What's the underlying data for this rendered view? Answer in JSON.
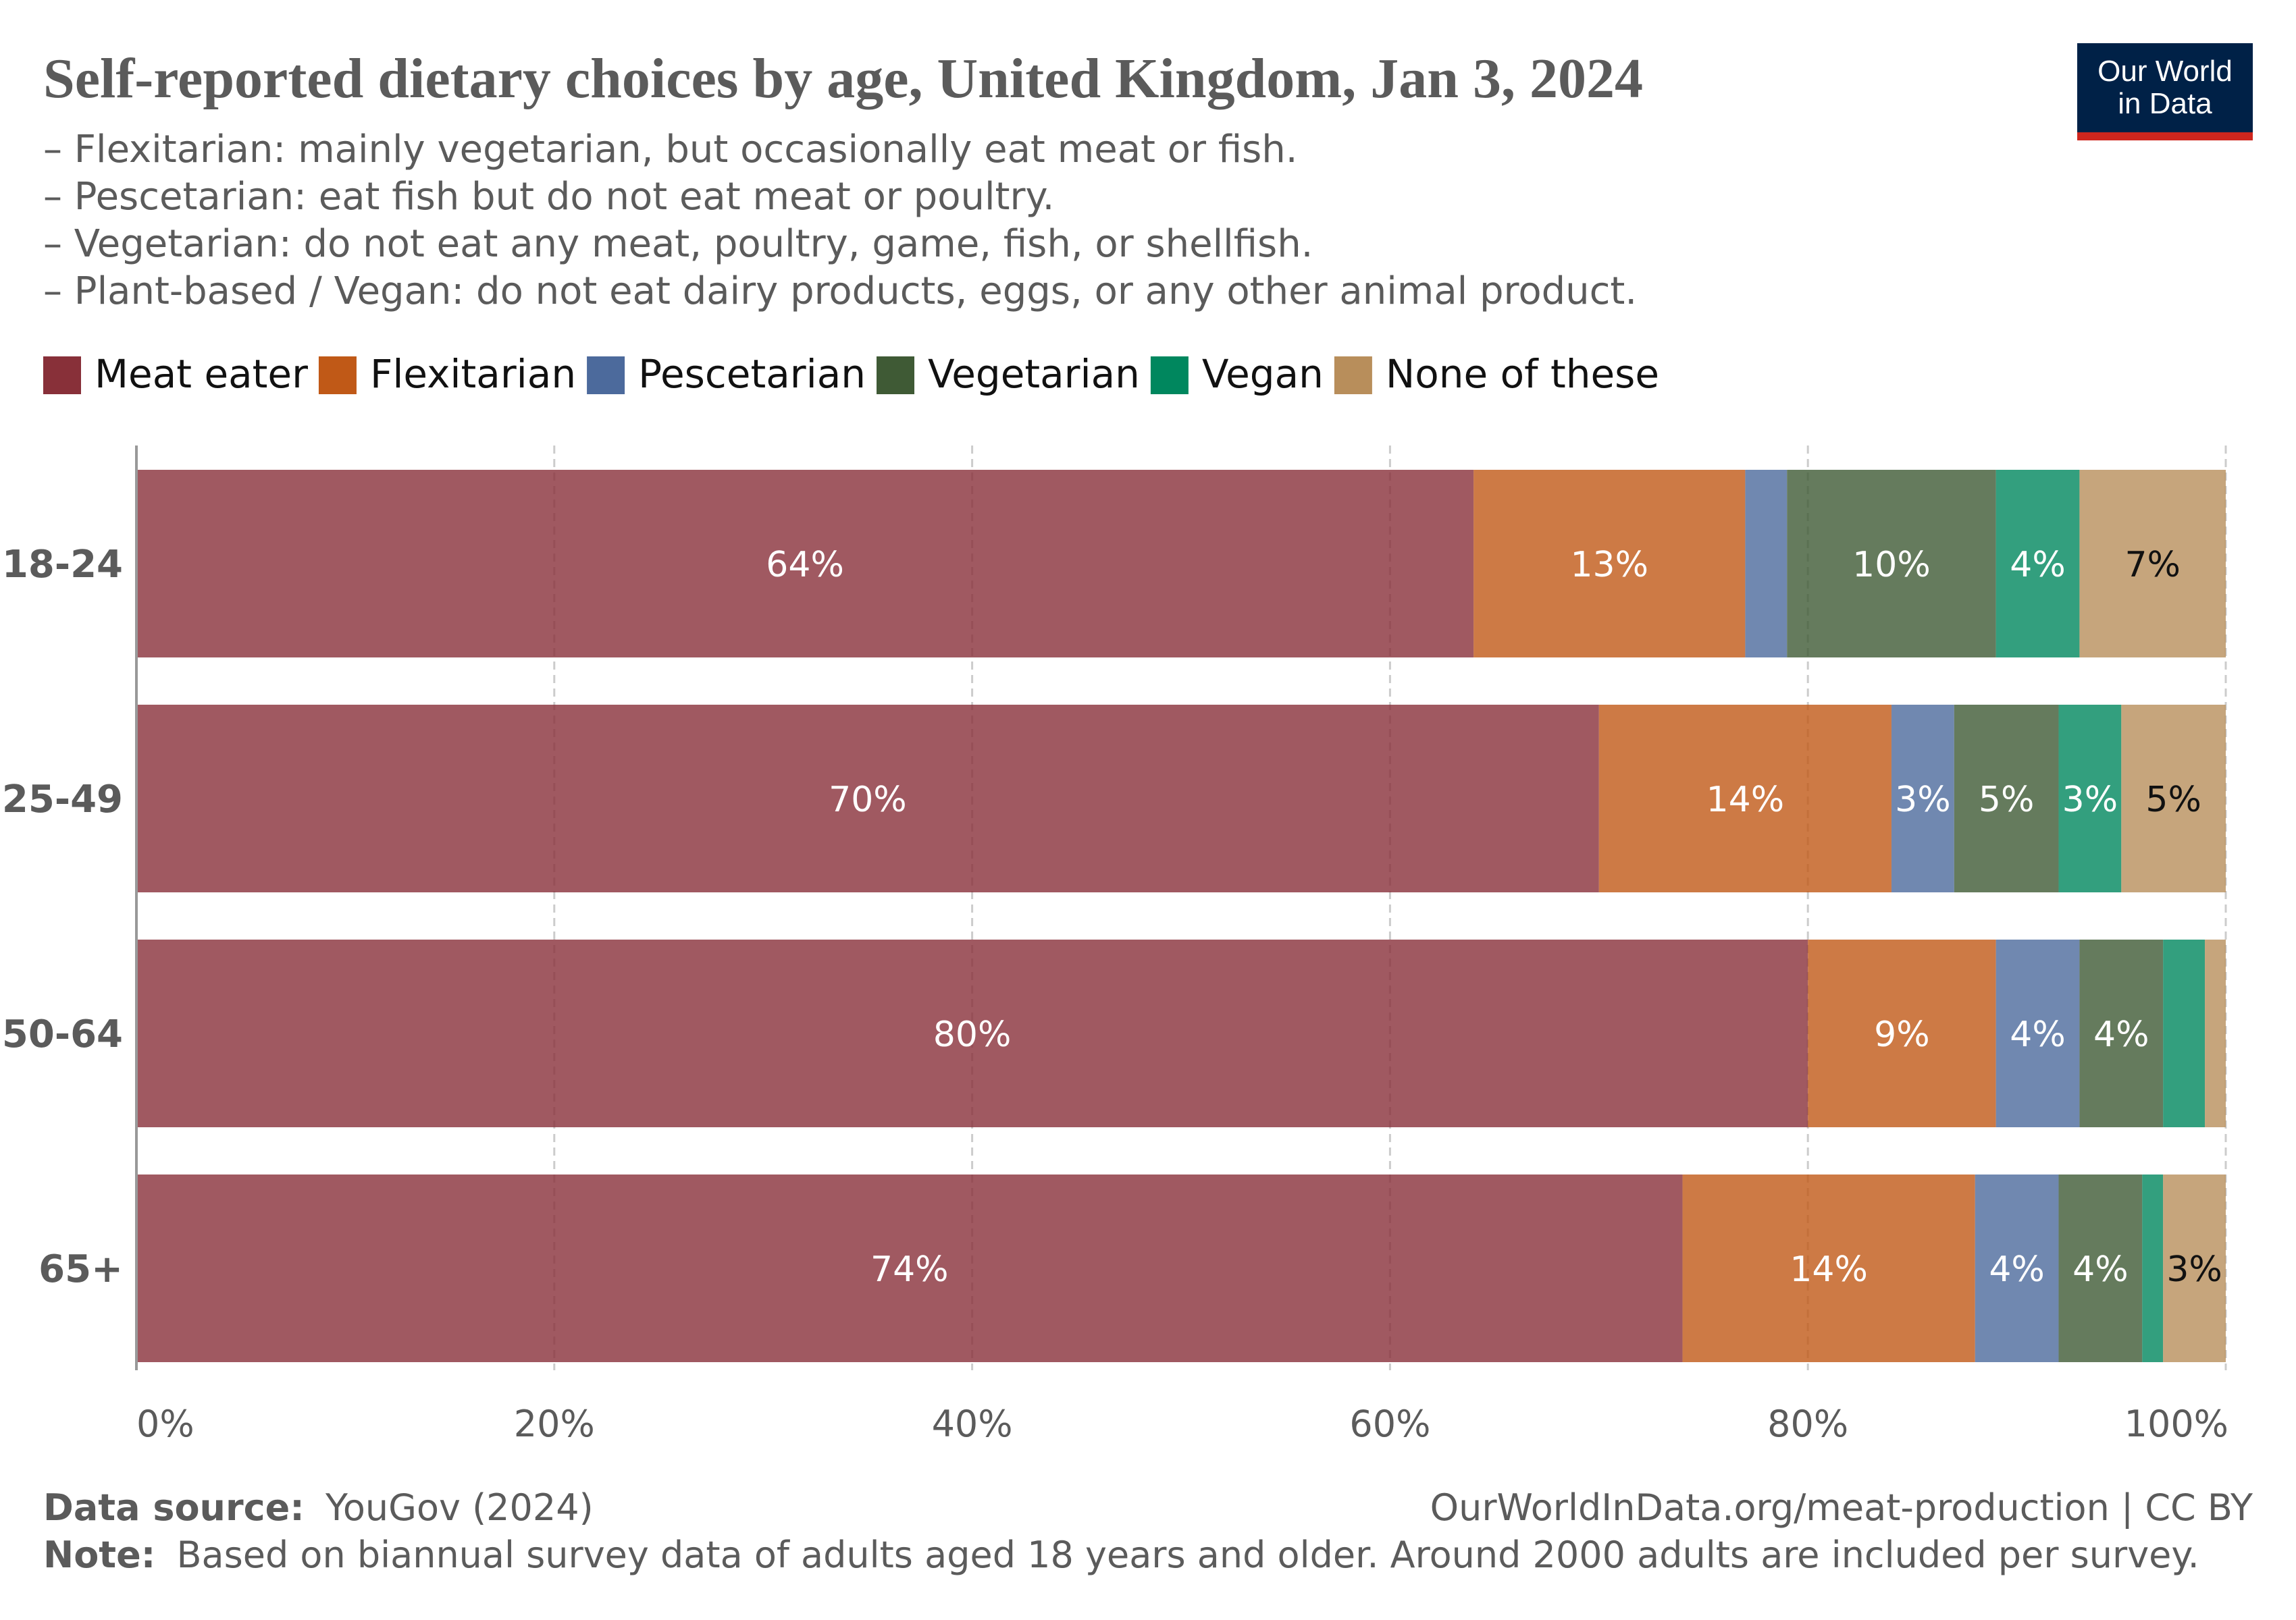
{
  "header": {
    "title": "Self-reported dietary choices by age, United Kingdom, Jan 3, 2024",
    "subtitle_lines": [
      "– Flexitarian: mainly vegetarian, but occasionally eat meat or fish.",
      "– Pescetarian: eat fish but do not eat meat or poultry.",
      "– Vegetarian: do not eat any meat, poultry, game, fish, or shellfish.",
      "– Plant-based / Vegan: do not eat dairy products, eggs, or any other animal product."
    ]
  },
  "logo": {
    "line1": "Our World",
    "line2": "in Data",
    "bg_color": "#002147",
    "accent_color": "#ce261e"
  },
  "footer": {
    "source_label": "Data source:",
    "source_value": "YouGov (2024)",
    "url": "OurWorldInData.org/meat-production | CC BY",
    "note_label": "Note:",
    "note_value": "Based on biannual survey data of adults aged 18 years and older. Around 2000 adults are included per survey."
  },
  "chart_data": {
    "type": "bar",
    "orientation": "horizontal",
    "stacked": true,
    "title": "Self-reported dietary choices by age, United Kingdom, Jan 3, 2024",
    "xlabel": "",
    "ylabel": "",
    "xlim": [
      0,
      100
    ],
    "x_ticks": [
      0,
      20,
      40,
      60,
      80,
      100
    ],
    "x_tick_labels": [
      "0%",
      "20%",
      "40%",
      "60%",
      "80%",
      "100%"
    ],
    "grid": true,
    "legend_position": "top",
    "categories": [
      "18-24",
      "25-49",
      "50-64",
      "65+"
    ],
    "series": [
      {
        "name": "Meat eater",
        "color": "#883039",
        "values": [
          64,
          70,
          80,
          74
        ],
        "labels": [
          "64%",
          "70%",
          "80%",
          "74%"
        ],
        "label_color": "#ffffff"
      },
      {
        "name": "Flexitarian",
        "color": "#c05917",
        "values": [
          13,
          14,
          9,
          14
        ],
        "labels": [
          "13%",
          "14%",
          "9%",
          "14%"
        ],
        "label_color": "#ffffff"
      },
      {
        "name": "Pescetarian",
        "color": "#4c6a9c",
        "values": [
          2,
          3,
          4,
          4
        ],
        "labels": [
          "",
          "3%",
          "4%",
          "4%"
        ],
        "label_color": "#ffffff"
      },
      {
        "name": "Vegetarian",
        "color": "#3f5a35",
        "values": [
          10,
          5,
          4,
          4
        ],
        "labels": [
          "10%",
          "5%",
          "4%",
          "4%"
        ],
        "label_color": "#ffffff"
      },
      {
        "name": "Vegan",
        "color": "#00875e",
        "values": [
          4,
          3,
          2,
          1
        ],
        "labels": [
          "4%",
          "3%",
          "",
          ""
        ],
        "label_color": "#ffffff"
      },
      {
        "name": "None of these",
        "color": "#b88e5b",
        "values": [
          7,
          5,
          1,
          3
        ],
        "labels": [
          "7%",
          "5%",
          "",
          "3%"
        ],
        "label_color": "#111111"
      }
    ]
  }
}
